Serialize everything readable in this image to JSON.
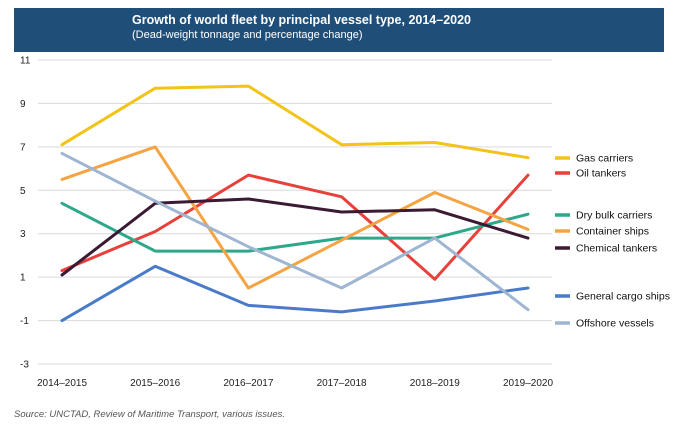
{
  "header": {
    "title": "Growth of world fleet by principal vessel type, 2014–2020",
    "subtitle": "(Dead-weight tonnage and percentage change)"
  },
  "source": "Source: UNCTAD, Review of Maritime Transport, various issues.",
  "chart_data": {
    "type": "line",
    "title": "Growth of world fleet by principal vessel type, 2014–2020",
    "subtitle": "(Dead-weight tonnage and percentage change)",
    "xlabel": "",
    "ylabel": "",
    "categories": [
      "2014–2015",
      "2015–2016",
      "2016–2017",
      "2017–2018",
      "2018–2019",
      "2019–2020"
    ],
    "yticks": [
      -3,
      -1,
      1,
      3,
      5,
      7,
      9,
      11
    ],
    "ylim": [
      -3,
      11
    ],
    "grid": "horizontal",
    "legend_position": "right",
    "series": [
      {
        "name": "Gas carriers",
        "color": "#f2c318",
        "values": [
          7.1,
          9.7,
          9.8,
          7.1,
          7.2,
          6.5
        ]
      },
      {
        "name": "Oil tankers",
        "color": "#e8413c",
        "values": [
          1.3,
          3.1,
          5.7,
          4.7,
          0.9,
          5.7
        ]
      },
      {
        "name": "Dry bulk carriers",
        "color": "#2ea88a",
        "values": [
          4.4,
          2.2,
          2.2,
          2.8,
          2.8,
          3.9
        ]
      },
      {
        "name": "Container ships",
        "color": "#f5a444",
        "values": [
          5.5,
          7.0,
          0.5,
          2.7,
          4.9,
          3.2
        ]
      },
      {
        "name": "Chemical tankers",
        "color": "#3b1a34",
        "values": [
          1.1,
          4.4,
          4.6,
          4.0,
          4.1,
          2.8
        ]
      },
      {
        "name": "General cargo ships",
        "color": "#4a7bc8",
        "values": [
          -1.0,
          1.5,
          -0.3,
          -0.6,
          -0.1,
          0.5
        ]
      },
      {
        "name": "Offshore vessels",
        "color": "#9fb6d2",
        "values": [
          6.7,
          4.5,
          2.4,
          0.5,
          2.8,
          -0.5
        ]
      }
    ]
  }
}
